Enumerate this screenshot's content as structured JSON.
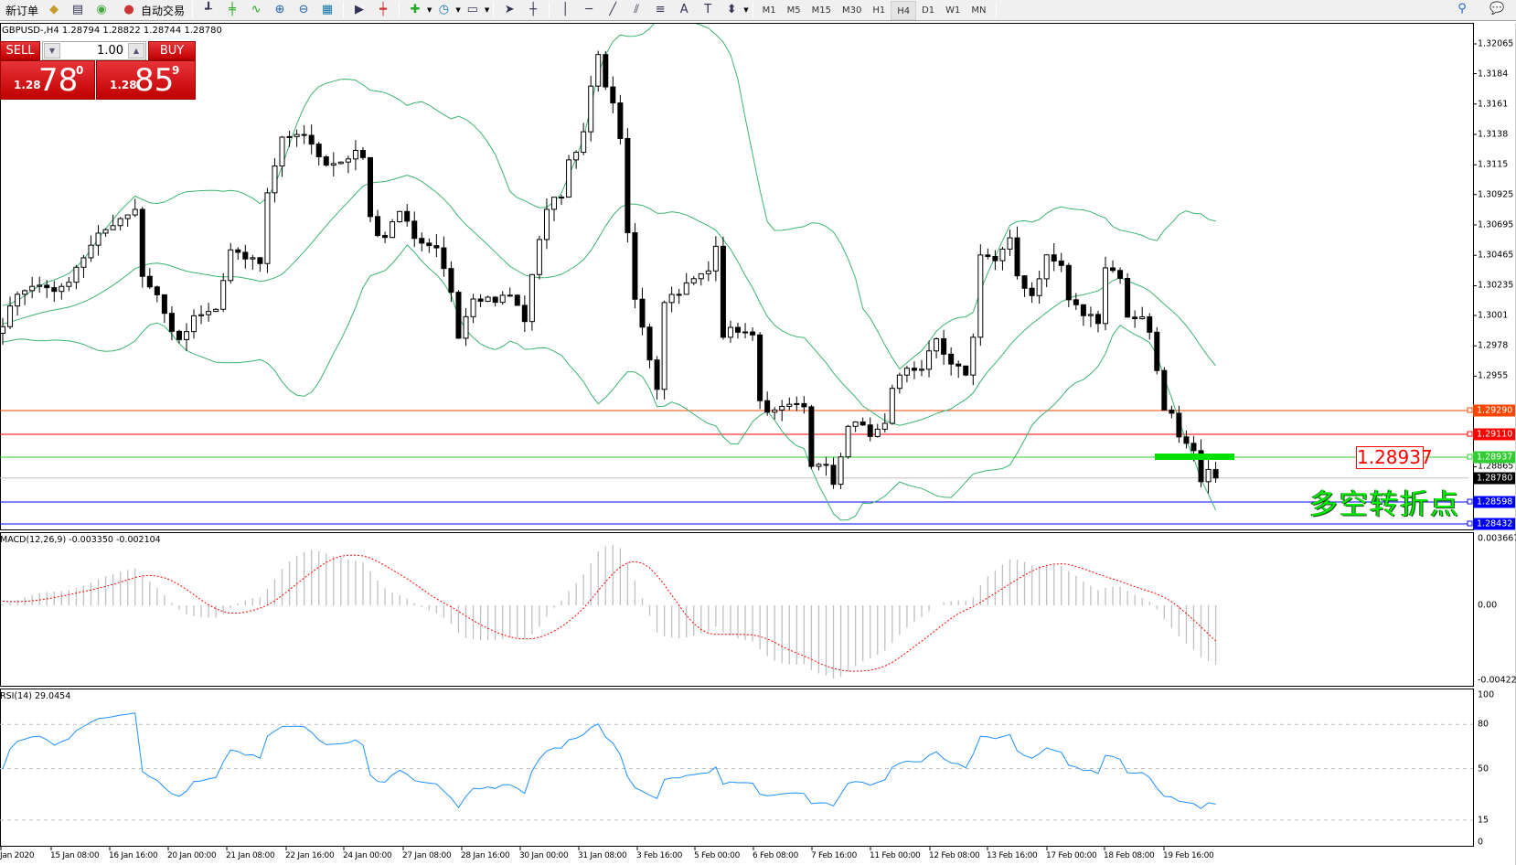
{
  "toolbar": {
    "new_order": "新订单",
    "auto_trading": "自动交易",
    "timeframes": [
      "M1",
      "M5",
      "M15",
      "M30",
      "H1",
      "H4",
      "D1",
      "W1",
      "MN"
    ],
    "active_timeframe": "H4"
  },
  "chart": {
    "symbol_info": "GBPUSD-,H4  1.28794 1.28822 1.28744 1.28780",
    "price_ticks": [
      1.32065,
      1.3184,
      1.3161,
      1.3138,
      1.3115,
      1.30925,
      1.30695,
      1.30465,
      1.30235,
      1.3001,
      1.2978,
      1.2955,
      1.28865
    ],
    "price_tags": [
      {
        "value": "1.29290",
        "color": "#ff4500"
      },
      {
        "value": "1.29110",
        "color": "#ff0000"
      },
      {
        "value": "1.28937",
        "color": "#32cd32"
      },
      {
        "value": "1.28780",
        "color": "#000000"
      },
      {
        "value": "1.28598",
        "color": "#0000ff"
      },
      {
        "value": "1.28432",
        "color": "#0000ff"
      }
    ],
    "pivot_label": "1.28937",
    "pivot_text": "多空转折点",
    "time_labels": [
      "Jan 2020",
      "15 Jan 08:00",
      "16 Jan 16:00",
      "20 Jan 00:00",
      "21 Jan 08:00",
      "22 Jan 16:00",
      "24 Jan 00:00",
      "27 Jan 08:00",
      "28 Jan 16:00",
      "30 Jan 00:00",
      "31 Jan 08:00",
      "3 Feb 16:00",
      "5 Feb 00:00",
      "6 Feb 08:00",
      "7 Feb 16:00",
      "11 Feb 00:00",
      "12 Feb 08:00",
      "13 Feb 16:00",
      "17 Feb 00:00",
      "18 Feb 08:00",
      "19 Feb 16:00"
    ],
    "close_path": [
      [
        0,
        1.29909
      ],
      [
        2,
        1.30201
      ],
      [
        5,
        1.30238
      ],
      [
        8,
        1.30201
      ],
      [
        10,
        1.30384
      ],
      [
        13,
        1.30603
      ],
      [
        15,
        1.30713
      ],
      [
        18,
        1.30822
      ],
      [
        19,
        1.30311
      ],
      [
        21,
        1.30164
      ],
      [
        22,
        1.30018
      ],
      [
        24,
        1.29799
      ],
      [
        26,
        1.29982
      ],
      [
        29,
        1.30055
      ],
      [
        31,
        1.30493
      ],
      [
        32,
        1.30457
      ],
      [
        35,
        1.3042
      ],
      [
        36,
        1.30932
      ],
      [
        38,
        1.31371
      ],
      [
        39,
        1.31371
      ],
      [
        42,
        1.31334
      ],
      [
        43,
        1.31188
      ],
      [
        45,
        1.31166
      ],
      [
        47,
        1.31224
      ],
      [
        49,
        1.31224
      ],
      [
        50,
        1.30749
      ],
      [
        51,
        1.3064
      ],
      [
        52,
        1.30603
      ],
      [
        54,
        1.30822
      ],
      [
        56,
        1.30566
      ],
      [
        57,
        1.3053
      ],
      [
        59,
        1.30493
      ],
      [
        61,
        1.30201
      ],
      [
        62,
        1.29872
      ],
      [
        64,
        1.30164
      ],
      [
        67,
        1.30128
      ],
      [
        69,
        1.30164
      ],
      [
        71,
        1.29982
      ],
      [
        73,
        1.30603
      ],
      [
        74,
        1.30822
      ],
      [
        76,
        1.30932
      ],
      [
        77,
        1.31188
      ],
      [
        79,
        1.31371
      ],
      [
        80,
        1.31736
      ],
      [
        81,
        1.31955
      ],
      [
        82,
        1.31773
      ],
      [
        83,
        1.3159
      ],
      [
        84,
        1.31371
      ],
      [
        85,
        1.30603
      ],
      [
        86,
        1.30128
      ],
      [
        87,
        1.29909
      ],
      [
        89,
        1.2947
      ],
      [
        90,
        1.30128
      ],
      [
        92,
        1.30201
      ],
      [
        94,
        1.30274
      ],
      [
        96,
        1.30347
      ],
      [
        97,
        1.30566
      ],
      [
        98,
        1.29872
      ],
      [
        100,
        1.29909
      ],
      [
        102,
        1.29835
      ],
      [
        103,
        1.29397
      ],
      [
        104,
        1.29251
      ],
      [
        106,
        1.29287
      ],
      [
        108,
        1.29324
      ],
      [
        109,
        1.29324
      ],
      [
        110,
        1.28885
      ],
      [
        112,
        1.28849
      ],
      [
        113,
        1.28739
      ],
      [
        115,
        1.29177
      ],
      [
        117,
        1.29177
      ],
      [
        118,
        1.29104
      ],
      [
        120,
        1.29177
      ],
      [
        121,
        1.2947
      ],
      [
        123,
        1.29616
      ],
      [
        125,
        1.29616
      ],
      [
        127,
        1.29799
      ],
      [
        129,
        1.29616
      ],
      [
        131,
        1.2958
      ],
      [
        132,
        1.29835
      ],
      [
        133,
        1.30493
      ],
      [
        135,
        1.3042
      ],
      [
        137,
        1.30566
      ],
      [
        138,
        1.30311
      ],
      [
        140,
        1.30164
      ],
      [
        142,
        1.30457
      ],
      [
        144,
        1.30384
      ],
      [
        145,
        1.30128
      ],
      [
        147,
        1.30018
      ],
      [
        149,
        1.29982
      ],
      [
        150,
        1.30384
      ],
      [
        152,
        1.30311
      ],
      [
        153,
        1.29982
      ],
      [
        155,
        1.30018
      ],
      [
        156,
        1.29872
      ],
      [
        158,
        1.29324
      ],
      [
        159,
        1.29251
      ],
      [
        160,
        1.29068
      ],
      [
        162,
        1.28958
      ],
      [
        163,
        1.28739
      ],
      [
        164,
        1.28812
      ],
      [
        165,
        1.2878
      ]
    ],
    "colors": {
      "bollinger": "#3cb371",
      "macd_hist": "#c0c0c0",
      "macd_signal": "#ff0000",
      "rsi": "#1e90ff",
      "levels": "#c0c0c0"
    }
  },
  "macd": {
    "title": "MACD(12,26,9) -0.003350 -0.002104",
    "ticks": [
      "0.003667",
      "0.00",
      "-0.00422"
    ]
  },
  "rsi": {
    "title": "RSI(14) 29.0454",
    "ticks": [
      "100",
      "80",
      "50",
      "15",
      "0"
    ]
  },
  "trade_panel": {
    "sell_label": "SELL",
    "buy_label": "BUY",
    "lot": "1.00",
    "sell_prefix": "1.28",
    "sell_big": "78",
    "sell_sup": "0",
    "buy_prefix": "1.28",
    "buy_big": "85",
    "buy_sup": "9"
  }
}
